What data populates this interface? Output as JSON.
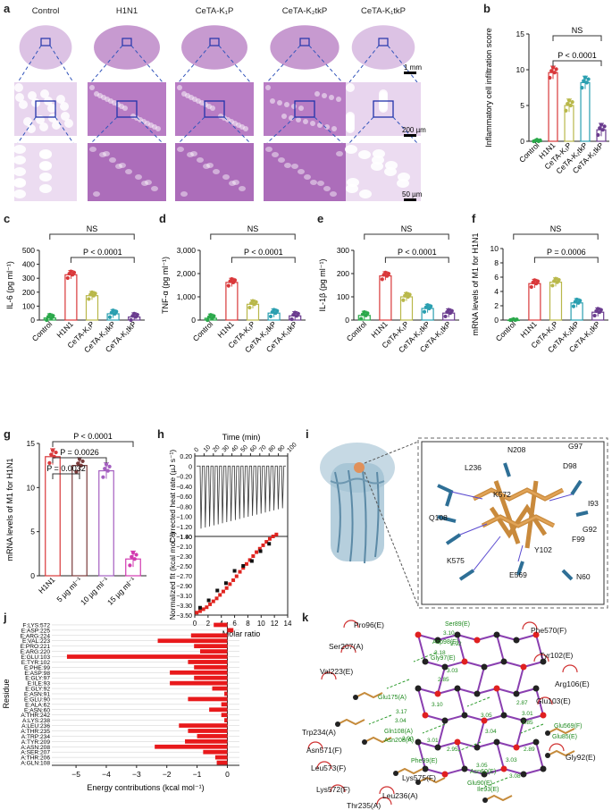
{
  "panel_labels": {
    "a": "a",
    "b": "b",
    "c": "c",
    "d": "d",
    "e": "e",
    "f": "f",
    "g": "g",
    "h": "h",
    "i": "i",
    "j": "j",
    "k": "k"
  },
  "histology": {
    "groups": [
      "Control",
      "H1N1",
      "CeTA-K₁P",
      "CeTA-K₂tkP",
      "CeTA-K₁tkP"
    ],
    "scale_bars": [
      "1 mm",
      "200 µm",
      "50 µm"
    ]
  },
  "ns": "NS",
  "colors": {
    "control": "#2aa84a",
    "h1n1": "#d9383a",
    "k1p": "#b9b84a",
    "k2tkp": "#2a9fb0",
    "k1tkp": "#6a3b8e",
    "bar": "#e8191b"
  },
  "chart_data": [
    {
      "id": "b",
      "type": "bar",
      "title": "",
      "ylabel": "Inflammatory cell infiltration score",
      "categories": [
        "Control",
        "H1N1",
        "CeTA-K₁P",
        "CeTA-K₂tkP",
        "CeTA-K₁tkP"
      ],
      "values": [
        0,
        9.6,
        5.0,
        8.2,
        1.6
      ],
      "ylim": [
        0,
        15
      ],
      "yticks": [
        "0",
        "5",
        "10",
        "15"
      ],
      "annotation": "P < 0.0001"
    },
    {
      "id": "c",
      "type": "bar",
      "ylabel": "IL-6 (pg ml⁻¹)",
      "categories": [
        "Control",
        "H1N1",
        "CeTA-K₁P",
        "CeTA-K₂tkP",
        "CeTA-K₁tkP"
      ],
      "values": [
        15,
        325,
        175,
        45,
        22
      ],
      "ylim": [
        0,
        500
      ],
      "yticks": [
        "0",
        "100",
        "200",
        "300",
        "400",
        "500"
      ],
      "annotation": "P < 0.0001"
    },
    {
      "id": "d",
      "type": "bar",
      "ylabel": "TNF-α (pg ml⁻¹)",
      "categories": [
        "Control",
        "H1N1",
        "CeTA-K₁P",
        "CeTA-K₂tkP",
        "CeTA-K₁tkP"
      ],
      "values": [
        80,
        1620,
        680,
        300,
        180
      ],
      "ylim": [
        0,
        3000
      ],
      "yticks": [
        "0",
        "1,000",
        "2,000",
        "3,000"
      ],
      "annotation": "P < 0.0001"
    },
    {
      "id": "e",
      "type": "bar",
      "ylabel": "IL-1β (pg ml⁻¹)",
      "categories": [
        "Control",
        "H1N1",
        "CeTA-K₁P",
        "CeTA-K₂tkP",
        "CeTA-K₁tkP"
      ],
      "values": [
        20,
        190,
        100,
        50,
        30
      ],
      "ylim": [
        0,
        300
      ],
      "yticks": [
        "0",
        "100",
        "200",
        "300"
      ],
      "annotation": "P < 0.0001"
    },
    {
      "id": "f",
      "type": "bar",
      "ylabel": "mRNA levels of M1 for H1N1",
      "categories": [
        "Control",
        "H1N1",
        "CeTA-K₁P",
        "CeTA-K₂tkP",
        "CeTA-K₁tkP"
      ],
      "values": [
        0,
        5.1,
        5.3,
        2.4,
        1.1
      ],
      "ylim": [
        0,
        10
      ],
      "yticks": [
        "0",
        "2",
        "4",
        "6",
        "8",
        "10"
      ],
      "annotation": "P = 0.0006"
    },
    {
      "id": "g",
      "type": "bar",
      "ylabel": "mRNA levels of M1 for H1N1",
      "categories": [
        "H1N1",
        "5 µg ml⁻¹",
        "10 µg ml⁻¹",
        "15 µg ml⁻¹"
      ],
      "values": [
        13.5,
        12.5,
        11.9,
        1.9
      ],
      "ylim": [
        0,
        15
      ],
      "yticks": [
        "0",
        "5",
        "10",
        "15"
      ],
      "annotations": [
        "P < 0.0001",
        "P = 0.0026",
        "P = 0.0032"
      ]
    },
    {
      "id": "h",
      "type": "line",
      "title": "Time (min)",
      "top_ylabel": "Corrected heat rate (µJ s⁻¹)",
      "top_yticks": [
        "0.20",
        "0",
        "−0.20",
        "−0.40",
        "−0.60",
        "−0.80",
        "−1.00",
        "−1.20",
        "−1.40"
      ],
      "top_xticks": [
        "0",
        "10",
        "20",
        "30",
        "40",
        "50",
        "60",
        "70",
        "80",
        "90",
        "100"
      ],
      "bottom_ylabel": "Normalized fit (kcal mol⁻¹)",
      "bottom_yticks": [
        "−1.90",
        "−2.10",
        "−2.30",
        "−2.50",
        "−2.70",
        "−2.90",
        "−3.10",
        "−3.30",
        "−3.50"
      ],
      "bottom_xticks": [
        "0",
        "2",
        "4",
        "6",
        "8",
        "10",
        "12",
        "14"
      ],
      "xlabel": "Molar ratio",
      "fit_x": [
        0.3,
        0.8,
        1.3,
        1.8,
        2.3,
        2.8,
        3.3,
        3.8,
        4.3,
        4.8,
        5.3,
        5.8,
        6.3,
        6.8,
        7.3,
        7.8,
        8.3,
        8.8,
        9.3,
        9.8,
        10.3,
        10.8,
        11.3,
        11.8,
        12.3
      ],
      "fit_y": [
        -3.45,
        -3.42,
        -3.38,
        -3.34,
        -3.28,
        -3.22,
        -3.16,
        -3.09,
        -3.02,
        -2.95,
        -2.87,
        -2.79,
        -2.71,
        -2.62,
        -2.54,
        -2.46,
        -2.38,
        -2.3,
        -2.22,
        -2.15,
        -2.08,
        -2.01,
        -1.95,
        -1.9,
        -1.86
      ],
      "raw_x": [
        0.8,
        2.1,
        3.4,
        4.7,
        6.0,
        7.3,
        8.6,
        9.9,
        11.2
      ],
      "raw_y": [
        -3.35,
        -3.2,
        -3.0,
        -2.85,
        -2.6,
        -2.5,
        -2.4,
        -2.2,
        -2.05
      ]
    },
    {
      "id": "j",
      "type": "bar",
      "orientation": "horizontal",
      "ylabel": "Residue",
      "xlabel": "Energy contributions (kcal mol⁻¹)",
      "xticks": [
        "−5",
        "−4",
        "−3",
        "−2",
        "−1",
        "0"
      ],
      "xlim": [
        -5.8,
        0.4
      ],
      "categories": [
        "F:LYS:572",
        "E:ASP:225",
        "E:ARG:224",
        "E:VAL:223",
        "E:PRO:221",
        "E:ARG:220",
        "E:GLU:103",
        "E:TYR:102",
        "E:PHE:99",
        "E:ASP:98",
        "E:GLY:97",
        "E:ILE:93",
        "E:GLY:92",
        "E:ASN:91",
        "E:GLU:90",
        "E:ALA:62",
        "E:ASN:60",
        "A:THR:242",
        "A:LYS:238",
        "A:LEU:236",
        "A:THR:235",
        "A:TRP:234",
        "A:TYR:209",
        "A:ASN:208",
        "A:SER:207",
        "A:THR:206",
        "A:GLN:108"
      ],
      "values": [
        -0.45,
        0.2,
        -1.2,
        -2.3,
        -1.1,
        -0.9,
        -5.3,
        -1.3,
        -1.1,
        -1.9,
        -1.1,
        -1.9,
        -0.5,
        -0.1,
        -1.3,
        -0.2,
        -0.6,
        -0.2,
        -0.1,
        -1.6,
        -1.3,
        -1.0,
        -1.4,
        -2.4,
        -0.8,
        -0.4,
        -0.35
      ]
    }
  ],
  "structure_i": {
    "residues": [
      "N208",
      "G97",
      "L236",
      "D98",
      "K572",
      "I93",
      "Q108",
      "G92",
      "F99",
      "Y102",
      "K575",
      "E569",
      "N60"
    ]
  },
  "ligplot_k": {
    "residues": [
      "Pro96(E)",
      "Ser207(A)",
      "Val223(E)",
      "Trp234(A)",
      "Asn571(F)",
      "Leu573(F)",
      "Lys572(F)",
      "Thr235(A)",
      "Leu236(A)",
      "Lys575(F)",
      "Phe570(F)",
      "Tyr102(E)",
      "Arg106(E)",
      "Glu103(E)",
      "Gly92(E)",
      "Ser89(E)",
      "Asp98(E)",
      "Gly97(E)",
      "Glu175(A)",
      "Gln108(A)",
      "Asn208(A)",
      "Phe99(E)",
      "Asn60(E)",
      "Glu90(E)",
      "Ile93(E)",
      "Glu569(F)",
      "Glu85(E)"
    ],
    "distances": [
      "3.10",
      "3.02",
      "3.18",
      "3.03",
      "2.85",
      "3.10",
      "3.17",
      "3.04",
      "2.90",
      "3.01",
      "2.95",
      "3.05",
      "3.04",
      "3.05",
      "2.87",
      "3.01",
      "2.85",
      "2.89",
      "3.03",
      "3.08"
    ]
  }
}
